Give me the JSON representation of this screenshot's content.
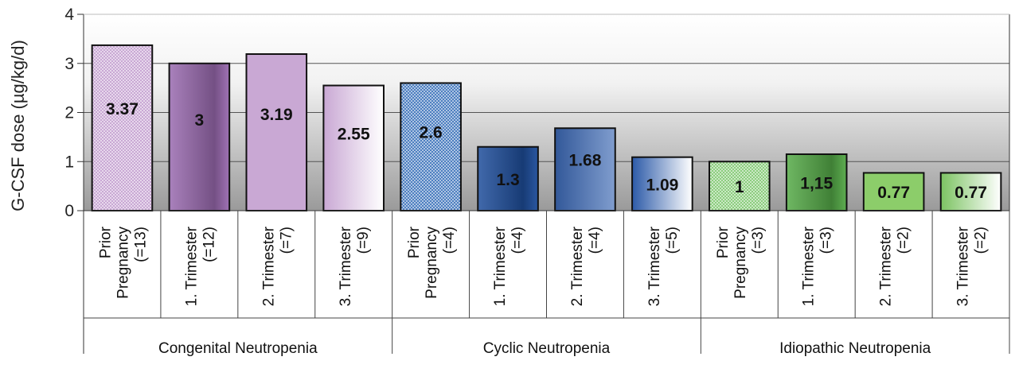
{
  "chart_data": {
    "type": "bar",
    "ylabel": "G-CSF dose (µg/kg/d)",
    "ylim": [
      0,
      4
    ],
    "yticks": [
      "0",
      "1",
      "2",
      "3",
      "4"
    ],
    "grid": true,
    "groups": [
      {
        "name": "Congenital Neutropenia",
        "bars": [
          {
            "label_lines": [
              "Prior",
              "Pregnancy",
              "(=13)"
            ],
            "value": 3.37,
            "value_label": "3.37",
            "color": "#c9a8d4",
            "style": "dotted"
          },
          {
            "label_lines": [
              "1. Trimester",
              "(=12)"
            ],
            "value": 3.0,
            "value_label": "3",
            "color": "#9a6bb0",
            "style": "gradient-dark"
          },
          {
            "label_lines": [
              "2. Trimester",
              "(=7)"
            ],
            "value": 3.19,
            "value_label": "3.19",
            "color": "#c9a8d4",
            "style": "solid"
          },
          {
            "label_lines": [
              "3. Trimester",
              "(=9)"
            ],
            "value": 2.55,
            "value_label": "2.55",
            "color": "#c9a8d4",
            "style": "gradient-light"
          }
        ]
      },
      {
        "name": "Cyclic Neutropenia",
        "bars": [
          {
            "label_lines": [
              "Prior",
              "Pregnancy",
              "(=4)"
            ],
            "value": 2.6,
            "value_label": "2.6",
            "color": "#4d7fc0",
            "style": "dotted"
          },
          {
            "label_lines": [
              "1. Trimester",
              "(=4)"
            ],
            "value": 1.3,
            "value_label": "1.3",
            "color": "#1f4e9c",
            "style": "gradient-dark"
          },
          {
            "label_lines": [
              "2. Trimester",
              "(=4)"
            ],
            "value": 1.68,
            "value_label": "1.68",
            "color": "#3b68b4",
            "style": "solid-gradient"
          },
          {
            "label_lines": [
              "3. Trimester",
              "(=5)"
            ],
            "value": 1.09,
            "value_label": "1.09",
            "color": "#2c5aa8",
            "style": "gradient-light"
          }
        ]
      },
      {
        "name": "Idiopathic Neutropenia",
        "bars": [
          {
            "label_lines": [
              "Prior",
              "Pregnancy",
              "(=3)"
            ],
            "value": 1.0,
            "value_label": "1",
            "color": "#8ccd7e",
            "style": "dotted"
          },
          {
            "label_lines": [
              "1. Trimester",
              "(=3)"
            ],
            "value": 1.15,
            "value_label": "1,15",
            "color": "#55aa48",
            "style": "gradient-dark"
          },
          {
            "label_lines": [
              "2. Trimester",
              "(=2)"
            ],
            "value": 0.77,
            "value_label": "0.77",
            "color": "#8ccd6a",
            "style": "solid"
          },
          {
            "label_lines": [
              "3. Trimester",
              "(=2)"
            ],
            "value": 0.77,
            "value_label": "0.77",
            "color": "#7cc362",
            "style": "gradient-light"
          }
        ]
      }
    ]
  }
}
